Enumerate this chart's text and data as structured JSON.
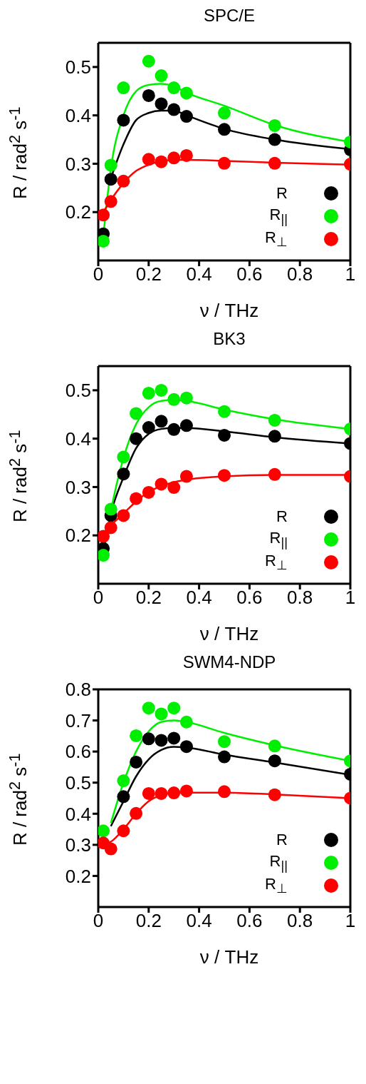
{
  "chart_data": [
    {
      "type": "scatter",
      "title": "SPC/E",
      "xlabel": "ν / THz",
      "ylabel": "R  / rad$^{2}$ s$^{-1}$",
      "xlim": [
        0,
        1
      ],
      "xticks": [
        0,
        0.2,
        0.4,
        0.6,
        0.8,
        1
      ],
      "ylim": [
        0.1,
        0.55
      ],
      "yticks": [
        0.2,
        0.3,
        0.4,
        0.5
      ],
      "legend": "bottom right",
      "marker": "circle",
      "x": [
        0.02,
        0.05,
        0.1,
        0.2,
        0.25,
        0.3,
        0.35,
        0.5,
        0.7,
        1
      ],
      "series": [
        {
          "name": "R",
          "color": "#000000",
          "values": [
            0.155,
            0.268,
            0.39,
            0.441,
            0.424,
            0.412,
            0.398,
            0.371,
            0.35,
            0.329
          ]
        },
        {
          "name": "R$_{||}$",
          "color": "#00ee00",
          "values": [
            0.14,
            0.297,
            0.457,
            0.512,
            0.482,
            0.457,
            0.446,
            0.405,
            0.379,
            0.345
          ]
        },
        {
          "name": "R$_{⊥}$",
          "color": "#ff0000",
          "values": [
            0.194,
            0.222,
            0.264,
            0.309,
            0.304,
            0.312,
            0.317,
            0.301,
            0.301,
            0.299
          ]
        },
        {
          "type": "line",
          "marker": "none",
          "color": "#000000",
          "x": [
            0.05,
            0.1,
            0.15,
            0.2,
            0.25,
            0.3,
            0.35,
            0.5,
            0.7,
            1
          ],
          "values": [
            0.27,
            0.34,
            0.39,
            0.405,
            0.41,
            0.41,
            0.4,
            0.372,
            0.35,
            0.33
          ]
        },
        {
          "type": "line",
          "marker": "none",
          "color": "#00ee00",
          "x": [
            0.02,
            0.05,
            0.1,
            0.15,
            0.2,
            0.25,
            0.3,
            0.35,
            0.5,
            0.7,
            1
          ],
          "values": [
            0.15,
            0.29,
            0.4,
            0.45,
            0.463,
            0.465,
            0.46,
            0.447,
            0.42,
            0.38,
            0.345
          ]
        },
        {
          "type": "line",
          "marker": "none",
          "color": "#ff0000",
          "x": [
            0.02,
            0.05,
            0.1,
            0.15,
            0.2,
            0.25,
            0.3,
            0.35,
            0.5,
            0.7,
            1
          ],
          "values": [
            0.2,
            0.225,
            0.26,
            0.285,
            0.298,
            0.305,
            0.308,
            0.308,
            0.306,
            0.302,
            0.298
          ]
        }
      ]
    },
    {
      "type": "scatter",
      "title": "BK3",
      "xlabel": "ν / THz",
      "ylabel": "R  / rad$^{2}$ s$^{-1}$",
      "xlim": [
        0,
        1
      ],
      "xticks": [
        0,
        0.2,
        0.4,
        0.6,
        0.8,
        1
      ],
      "ylim": [
        0.1,
        0.55
      ],
      "yticks": [
        0.2,
        0.3,
        0.4,
        0.5
      ],
      "legend": "bottom right",
      "marker": "circle",
      "x": [
        0.02,
        0.05,
        0.1,
        0.15,
        0.2,
        0.25,
        0.3,
        0.35,
        0.5,
        0.7,
        1
      ],
      "series": [
        {
          "name": "R",
          "color": "#000000",
          "values": [
            0.173,
            0.241,
            0.327,
            0.4,
            0.423,
            0.436,
            0.419,
            0.427,
            0.407,
            0.405,
            0.39
          ]
        },
        {
          "name": "R$_{||}$",
          "color": "#00ee00",
          "values": [
            0.159,
            0.254,
            0.362,
            0.452,
            0.494,
            0.5,
            0.481,
            0.484,
            0.456,
            0.438,
            0.42
          ]
        },
        {
          "name": "R$_{⊥}$",
          "color": "#ff0000",
          "values": [
            0.198,
            0.216,
            0.241,
            0.276,
            0.289,
            0.306,
            0.299,
            0.322,
            0.324,
            0.326,
            0.322
          ]
        },
        {
          "type": "line",
          "marker": "none",
          "color": "#000000",
          "x": [
            0.02,
            0.05,
            0.1,
            0.15,
            0.2,
            0.25,
            0.3,
            0.35,
            0.5,
            0.7,
            1
          ],
          "values": [
            0.17,
            0.245,
            0.32,
            0.38,
            0.41,
            0.42,
            0.422,
            0.422,
            0.415,
            0.403,
            0.39
          ]
        },
        {
          "type": "line",
          "marker": "none",
          "color": "#00ee00",
          "x": [
            0.02,
            0.05,
            0.1,
            0.15,
            0.2,
            0.25,
            0.3,
            0.35,
            0.5,
            0.7,
            1
          ],
          "values": [
            0.16,
            0.25,
            0.36,
            0.43,
            0.465,
            0.478,
            0.48,
            0.478,
            0.46,
            0.44,
            0.42
          ]
        },
        {
          "type": "line",
          "marker": "none",
          "color": "#ff0000",
          "x": [
            0.02,
            0.05,
            0.1,
            0.15,
            0.2,
            0.25,
            0.3,
            0.35,
            0.5,
            0.7,
            1
          ],
          "values": [
            0.2,
            0.22,
            0.245,
            0.27,
            0.29,
            0.302,
            0.31,
            0.315,
            0.322,
            0.325,
            0.325
          ]
        }
      ]
    },
    {
      "type": "scatter",
      "title": "SWM4-NDP",
      "xlabel": "ν / THz",
      "ylabel": "R  / rad$^{2}$ s$^{-1}$",
      "xlim": [
        0,
        1
      ],
      "xticks": [
        0,
        0.2,
        0.4,
        0.6,
        0.8,
        1
      ],
      "ylim": [
        0.1,
        0.8
      ],
      "yticks": [
        0.2,
        0.3,
        0.4,
        0.5,
        0.6,
        0.7,
        0.8
      ],
      "legend": "bottom right",
      "marker": "circle",
      "x": [
        0.02,
        0.05,
        0.1,
        0.15,
        0.2,
        0.25,
        0.3,
        0.35,
        0.5,
        0.7,
        1
      ],
      "series": [
        {
          "name": "R",
          "color": "#000000",
          "values": [
            null,
            null,
            0.455,
            0.566,
            0.641,
            0.636,
            0.643,
            0.616,
            0.583,
            0.57,
            0.527
          ]
        },
        {
          "name": "R$_{||}$",
          "color": "#00ee00",
          "values": [
            0.345,
            null,
            0.506,
            0.651,
            0.74,
            0.721,
            0.74,
            0.695,
            0.632,
            0.618,
            0.57
          ]
        },
        {
          "name": "R$_{⊥}$",
          "color": "#ff0000",
          "values": [
            0.306,
            0.287,
            0.345,
            0.401,
            0.465,
            0.465,
            0.467,
            0.473,
            0.471,
            0.461,
            0.45
          ]
        },
        {
          "type": "line",
          "marker": "none",
          "color": "#000000",
          "x": [
            0.05,
            0.1,
            0.15,
            0.2,
            0.25,
            0.3,
            0.35,
            0.5,
            0.7,
            1
          ],
          "values": [
            0.36,
            0.44,
            0.52,
            0.575,
            0.605,
            0.615,
            0.613,
            0.59,
            0.565,
            0.525
          ]
        },
        {
          "type": "line",
          "marker": "none",
          "color": "#00ee00",
          "x": [
            0.05,
            0.1,
            0.15,
            0.2,
            0.25,
            0.3,
            0.35,
            0.5,
            0.7,
            1
          ],
          "values": [
            0.37,
            0.5,
            0.6,
            0.665,
            0.695,
            0.7,
            0.695,
            0.66,
            0.62,
            0.57
          ]
        },
        {
          "type": "line",
          "marker": "none",
          "color": "#ff0000",
          "x": [
            0.02,
            0.05,
            0.1,
            0.15,
            0.2,
            0.25,
            0.3,
            0.35,
            0.5,
            0.7,
            1
          ],
          "values": [
            0.3,
            0.31,
            0.35,
            0.4,
            0.44,
            0.46,
            0.467,
            0.468,
            0.468,
            0.462,
            0.45
          ]
        }
      ]
    }
  ]
}
